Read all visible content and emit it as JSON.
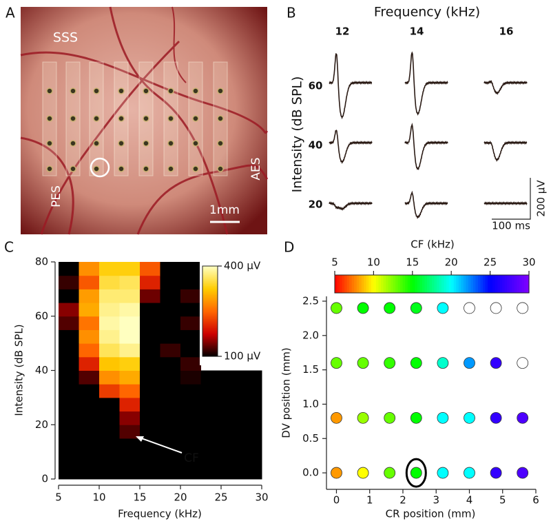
{
  "panel_labels": [
    "A",
    "B",
    "C",
    "D"
  ],
  "panel_a": {
    "labels": [
      "SSS",
      "PES",
      "AES"
    ],
    "scale_bar": "1mm"
  },
  "panel_b": {
    "title": "Frequency (kHz)",
    "columns": [
      "12",
      "14",
      "16"
    ],
    "ylabel": "Intensity (dB SPL)",
    "rows": [
      "60",
      "40",
      "20"
    ],
    "scale_y": "200 µV",
    "scale_x": "100 ms"
  },
  "chart_data": [
    {
      "type": "heatmap",
      "xlabel": "Frequency (kHz)",
      "ylabel": "Intensity (dB SPL)",
      "annotation": "CF",
      "x_edges": [
        5,
        7.5,
        10,
        12.5,
        15,
        17.5,
        20,
        22.5,
        25,
        27.5,
        30
      ],
      "y_edges": [
        0,
        5,
        10,
        15,
        20,
        25,
        30,
        35,
        40,
        45,
        50,
        55,
        60,
        65,
        70,
        75,
        80
      ],
      "values": [
        [
          100,
          100,
          100,
          100,
          100,
          100,
          100,
          100,
          100,
          100
        ],
        [
          100,
          100,
          100,
          100,
          100,
          100,
          100,
          100,
          100,
          100
        ],
        [
          100,
          100,
          100,
          100,
          100,
          100,
          100,
          100,
          100,
          100
        ],
        [
          100,
          100,
          100,
          130,
          100,
          100,
          100,
          100,
          100,
          100
        ],
        [
          100,
          100,
          100,
          150,
          100,
          100,
          100,
          100,
          100,
          100
        ],
        [
          100,
          100,
          100,
          200,
          100,
          100,
          100,
          100,
          100,
          100
        ],
        [
          100,
          100,
          220,
          250,
          100,
          100,
          100,
          100,
          100,
          100
        ],
        [
          100,
          130,
          280,
          300,
          100,
          100,
          110,
          100,
          100,
          100
        ],
        [
          100,
          200,
          320,
          330,
          100,
          100,
          120,
          null,
          null,
          null
        ],
        [
          100,
          250,
          360,
          380,
          100,
          120,
          100,
          null,
          null,
          null
        ],
        [
          100,
          280,
          380,
          400,
          100,
          100,
          100,
          null,
          null,
          null
        ],
        [
          130,
          260,
          390,
          400,
          100,
          100,
          120,
          null,
          null,
          null
        ],
        [
          150,
          300,
          380,
          390,
          100,
          100,
          100,
          null,
          null,
          null
        ],
        [
          100,
          290,
          370,
          370,
          140,
          100,
          120,
          null,
          null,
          null
        ],
        [
          120,
          240,
          350,
          360,
          200,
          100,
          100,
          null,
          null,
          null
        ],
        [
          100,
          280,
          330,
          330,
          240,
          100,
          100,
          null,
          null,
          null
        ]
      ],
      "xlim": [
        5,
        30
      ],
      "ylim": [
        0,
        80
      ],
      "xticks": [
        5,
        10,
        15,
        20,
        25,
        30
      ],
      "yticks": [
        0,
        20,
        40,
        60,
        80
      ],
      "clim": [
        100,
        400
      ],
      "colormap": [
        "#000000",
        "#cc0000",
        "#ff6600",
        "#ffcc00",
        "#ffffc0"
      ],
      "colorbar_ticks": [
        {
          "value": 400,
          "label": "400 µV"
        },
        {
          "value": 100,
          "label": "100 µV"
        }
      ]
    },
    {
      "type": "scatter",
      "xlabel": "CR position (mm)",
      "ylabel": "DV position (mm)",
      "colorbar_title": "CF (kHz)",
      "x": [
        0,
        0.8,
        1.6,
        2.4,
        3.2,
        4,
        4.8,
        5.6,
        0,
        0.8,
        1.6,
        2.4,
        3.2,
        4,
        4.8,
        5.6,
        0,
        0.8,
        1.6,
        2.4,
        3.2,
        4,
        4.8,
        5.6,
        0,
        0.8,
        1.6,
        2.4,
        3.2,
        4,
        4.8,
        5.6
      ],
      "y": [
        2.4,
        2.4,
        2.4,
        2.4,
        2.4,
        2.4,
        2.4,
        2.4,
        1.6,
        1.6,
        1.6,
        1.6,
        1.6,
        1.6,
        1.6,
        1.6,
        0.8,
        0.8,
        0.8,
        0.8,
        0.8,
        0.8,
        0.8,
        0.8,
        0,
        0,
        0,
        0,
        0,
        0,
        0,
        0
      ],
      "values": [
        13,
        15,
        15,
        15.5,
        20,
        null,
        null,
        null,
        13,
        13,
        14,
        15,
        19,
        22,
        27,
        null,
        8,
        12,
        13,
        15,
        20,
        20,
        27,
        28,
        8,
        10,
        13,
        15,
        20,
        20,
        27,
        28
      ],
      "xlim": [
        -0.3,
        6
      ],
      "ylim": [
        -0.24,
        2.57
      ],
      "xticks": [
        0,
        1,
        2,
        3,
        4,
        5,
        6
      ],
      "yticks": [
        {
          "value": 0,
          "label": "0.0"
        },
        0.5,
        {
          "value": 1,
          "label": "1.0"
        },
        1.5,
        {
          "value": 2,
          "label": "2.0"
        },
        2.5
      ],
      "clim": [
        5,
        30
      ],
      "colormap": [
        "#ff0000",
        "#ffff00",
        "#00ff00",
        "#00ffff",
        "#0000ff",
        "#8000ff"
      ],
      "colorbar_ticks": [
        5,
        10,
        15,
        20,
        25,
        30
      ]
    }
  ]
}
